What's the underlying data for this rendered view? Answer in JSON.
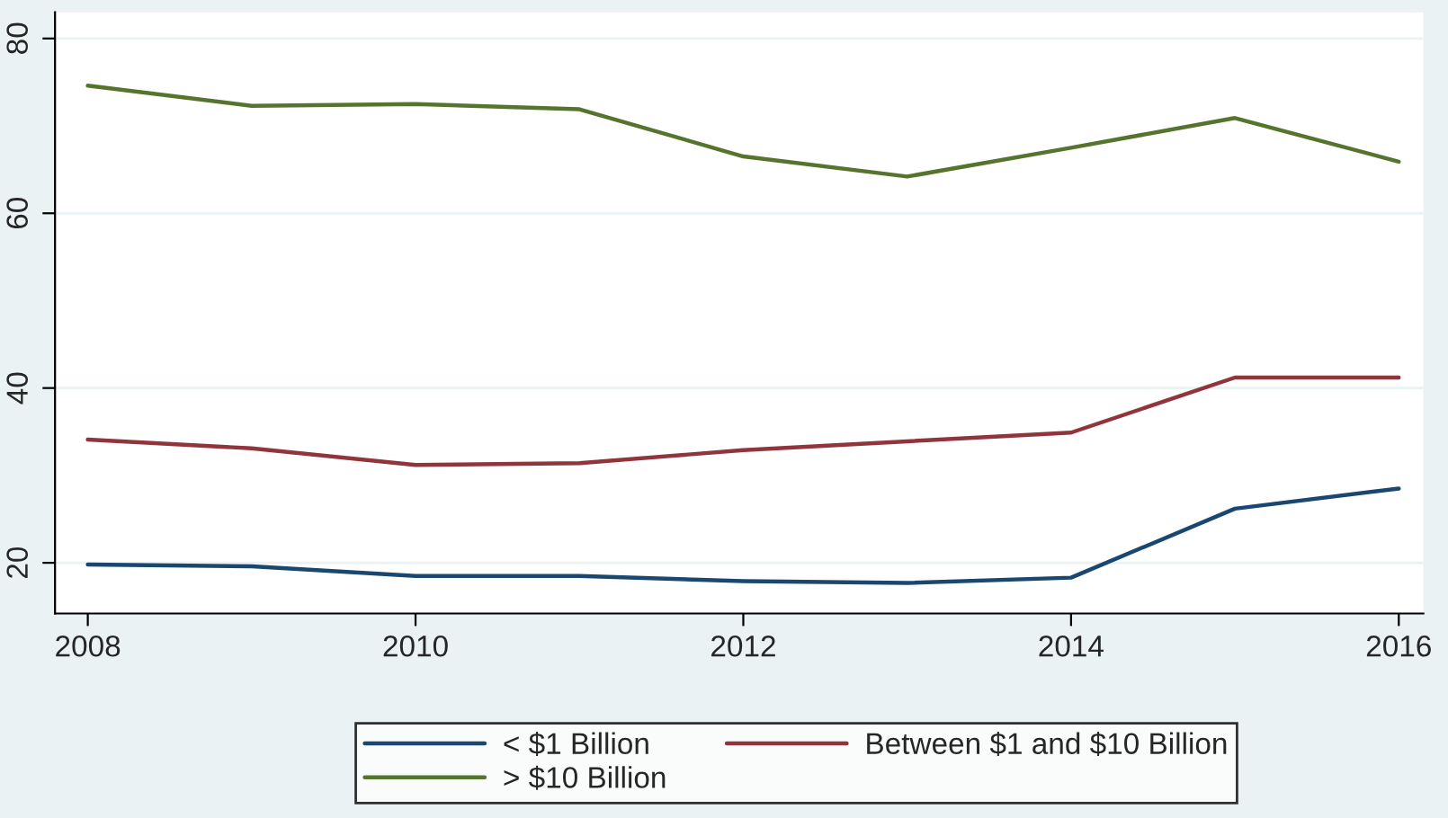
{
  "chart_data": {
    "type": "line",
    "x": [
      2008,
      2009,
      2010,
      2011,
      2012,
      2013,
      2014,
      2015,
      2016
    ],
    "series": [
      {
        "name": "< $1 Billion",
        "color": "#1a476f",
        "values": [
          19.8,
          19.6,
          18.5,
          18.5,
          17.9,
          17.7,
          18.3,
          26.2,
          28.5
        ]
      },
      {
        "name": "Between $1 and $10 Billion",
        "color": "#90353b",
        "values": [
          34.1,
          33.1,
          31.2,
          31.4,
          32.9,
          33.9,
          34.9,
          41.2,
          41.2
        ]
      },
      {
        "name": "> $10 Billion",
        "color": "#55752f",
        "values": [
          74.6,
          72.3,
          72.5,
          71.9,
          66.5,
          64.2,
          67.5,
          70.9,
          65.9
        ]
      }
    ],
    "xlim": [
      2007.8,
      2016.15
    ],
    "xticks": [
      2008,
      2010,
      2012,
      2014,
      2016
    ],
    "ylim": [
      14.2,
      83
    ],
    "yticks": [
      20,
      40,
      60,
      80
    ],
    "grid": "y",
    "legend": "bottom",
    "marker": "none",
    "line_style": "solid"
  }
}
